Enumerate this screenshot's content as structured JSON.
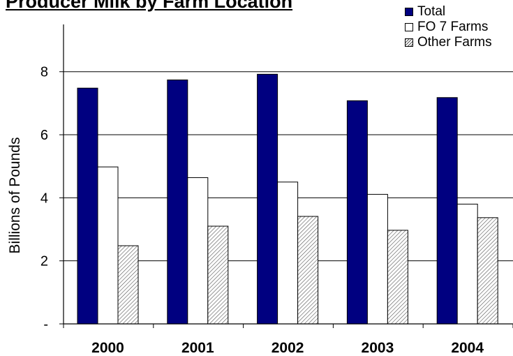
{
  "chart_data": {
    "type": "bar",
    "title": "Producer Milk by Farm Location",
    "ylabel": "Billions of Pounds",
    "xlabel": "",
    "categories": [
      "2000",
      "2001",
      "2002",
      "2003",
      "2004"
    ],
    "series": [
      {
        "name": "Total",
        "values": [
          7.48,
          7.74,
          7.92,
          7.08,
          7.18
        ],
        "color": "#000080"
      },
      {
        "name": "FO 7 Farms",
        "values": [
          4.98,
          4.64,
          4.5,
          4.11,
          3.8
        ],
        "color": "#ffffff"
      },
      {
        "name": "Other Farms",
        "values": [
          2.48,
          3.1,
          3.41,
          2.97,
          3.37
        ],
        "color": "hatched"
      }
    ],
    "ylim": [
      0,
      9.5
    ],
    "yticks": [
      0,
      2,
      4,
      6,
      8
    ],
    "ytick_labels": [
      "-",
      "2",
      "4",
      "6",
      "8"
    ],
    "grid": true,
    "legend_position": "top-right"
  }
}
